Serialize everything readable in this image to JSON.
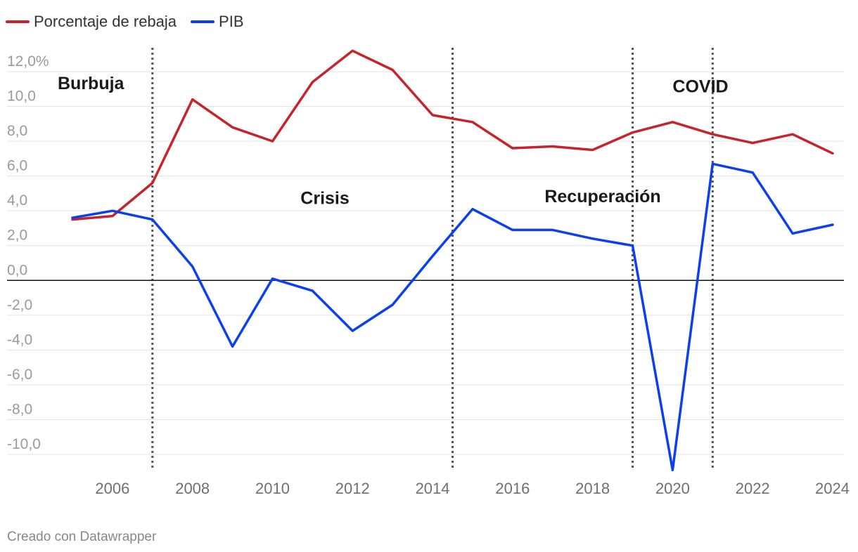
{
  "chart_data": {
    "type": "line",
    "x": [
      2005,
      2006,
      2007,
      2008,
      2009,
      2010,
      2011,
      2012,
      2013,
      2014,
      2015,
      2016,
      2017,
      2018,
      2019,
      2020,
      2021,
      2022,
      2023,
      2024
    ],
    "series": [
      {
        "name": "Porcentaje de rebaja",
        "color": "#c8232c",
        "x": [
          2005,
          2006,
          2007,
          2008,
          2009,
          2010,
          2011,
          2012,
          2013,
          2014,
          2015,
          2016,
          2017,
          2018,
          2019,
          2020,
          2021,
          2022,
          2023,
          2024
        ],
        "values": [
          3.5,
          3.7,
          5.6,
          10.4,
          8.8,
          8.0,
          11.4,
          13.2,
          12.1,
          9.5,
          9.1,
          7.6,
          7.7,
          7.5,
          8.5,
          9.1,
          8.4,
          7.9,
          8.4,
          7.3
        ]
      },
      {
        "name": "PIB",
        "color": "#0b3ff0",
        "x": [
          2005,
          2006,
          2007,
          2008,
          2009,
          2010,
          2011,
          2012,
          2013,
          2014,
          2015,
          2016,
          2017,
          2018,
          2019,
          2020,
          2021,
          2022,
          2023,
          2024
        ],
        "values": [
          3.6,
          4.0,
          3.5,
          0.8,
          -3.8,
          0.1,
          -0.6,
          -2.9,
          -1.4,
          1.4,
          4.1,
          2.9,
          2.9,
          2.4,
          2.0,
          -10.9,
          6.7,
          6.2,
          2.7,
          3.2
        ]
      }
    ],
    "y_ticks": [
      {
        "value": 12,
        "label": "12,0%"
      },
      {
        "value": 10,
        "label": "10,0"
      },
      {
        "value": 8,
        "label": "8,0"
      },
      {
        "value": 6,
        "label": "6,0"
      },
      {
        "value": 4,
        "label": "4,0"
      },
      {
        "value": 2,
        "label": "2,0"
      },
      {
        "value": 0,
        "label": "0,0"
      },
      {
        "value": -2,
        "label": "-2,0"
      },
      {
        "value": -4,
        "label": "-4,0"
      },
      {
        "value": -6,
        "label": "-6,0"
      },
      {
        "value": -8,
        "label": "-8,0"
      },
      {
        "value": -10,
        "label": "-10,0"
      }
    ],
    "x_ticks": [
      {
        "value": 2006,
        "label": "2006"
      },
      {
        "value": 2008,
        "label": "2008"
      },
      {
        "value": 2010,
        "label": "2010"
      },
      {
        "value": 2012,
        "label": "2012"
      },
      {
        "value": 2014,
        "label": "2014"
      },
      {
        "value": 2016,
        "label": "2016"
      },
      {
        "value": 2018,
        "label": "2018"
      },
      {
        "value": 2020,
        "label": "2020"
      },
      {
        "value": 2022,
        "label": "2022"
      },
      {
        "value": 2024,
        "label": "2024"
      }
    ],
    "xlim": [
      2005,
      2024
    ],
    "ylim": [
      -11,
      13.2
    ],
    "grid": true,
    "legend_position": "top-left",
    "period_dividers": [
      2007,
      2014.5,
      2019,
      2021
    ],
    "period_labels": [
      {
        "label": "Burbuja",
        "x": 2005.4,
        "y": 11.0
      },
      {
        "label": "Crisis",
        "x": 2010.7,
        "y": 4.4
      },
      {
        "label": "Recuperación",
        "x": 2016.8,
        "y": 4.5
      },
      {
        "label": "COVID",
        "x": 2020,
        "y": 10.8
      }
    ],
    "zero_line": true
  },
  "credit": "Creado con Datawrapper"
}
